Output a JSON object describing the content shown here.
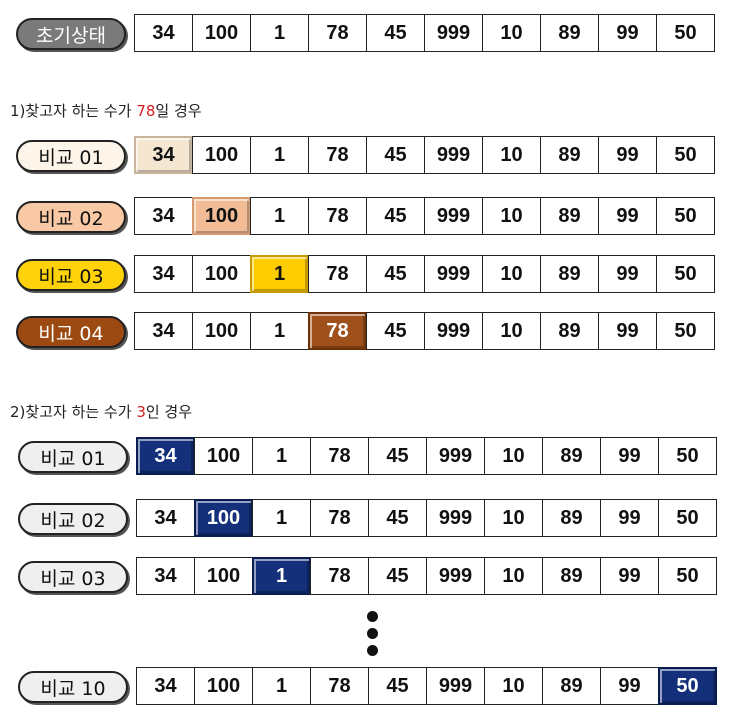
{
  "initial": {
    "label": "초기상태",
    "values": [
      "34",
      "100",
      "1",
      "78",
      "45",
      "999",
      "10",
      "89",
      "99",
      "50"
    ]
  },
  "case1": {
    "caption_pre": "1)찾고자 하는 수가 ",
    "caption_num": "78",
    "caption_post": "일 경우",
    "target": "78",
    "comparisons": [
      {
        "label": "비교 01",
        "highlight_index": 0,
        "pill_bg": "#fdf5ea",
        "pill_fg": "#111111",
        "cell_bg": "#f5e6d2",
        "cell_fg": "#111111",
        "cell_border": "#c8b59c"
      },
      {
        "label": "비교 02",
        "highlight_index": 1,
        "pill_bg": "#f8c9a4",
        "pill_fg": "#111111",
        "cell_bg": "#f2bd96",
        "cell_fg": "#111111",
        "cell_border": "#d59a70"
      },
      {
        "label": "비교 03",
        "highlight_index": 2,
        "pill_bg": "#ffd20a",
        "pill_fg": "#111111",
        "cell_bg": "#ffcc00",
        "cell_fg": "#111111",
        "cell_border": "#c79c00"
      },
      {
        "label": "비교 04",
        "highlight_index": 3,
        "pill_bg": "#9c4a12",
        "pill_fg": "#ffffff",
        "cell_bg": "#a0501a",
        "cell_fg": "#ffffff",
        "cell_border": "#6e3208"
      }
    ]
  },
  "case2": {
    "caption_pre": "2)찾고자 하는 수가 ",
    "caption_num": "3",
    "caption_post": "인 경우",
    "target": "3",
    "comparisons": [
      {
        "label": "비교 01",
        "highlight_index": 0
      },
      {
        "label": "비교 02",
        "highlight_index": 1
      },
      {
        "label": "비교 03",
        "highlight_index": 2
      },
      {
        "label": "비교 10",
        "highlight_index": 9
      }
    ],
    "pill_bg": "#efefef",
    "cell_bg": "#14307a",
    "cell_fg": "#ffffff",
    "cell_border": "#0a1d52"
  },
  "colors": {
    "initial_pill_bg": "#7a7a7a",
    "initial_pill_fg": "#ffffff",
    "caption_highlight": "#d62020"
  }
}
